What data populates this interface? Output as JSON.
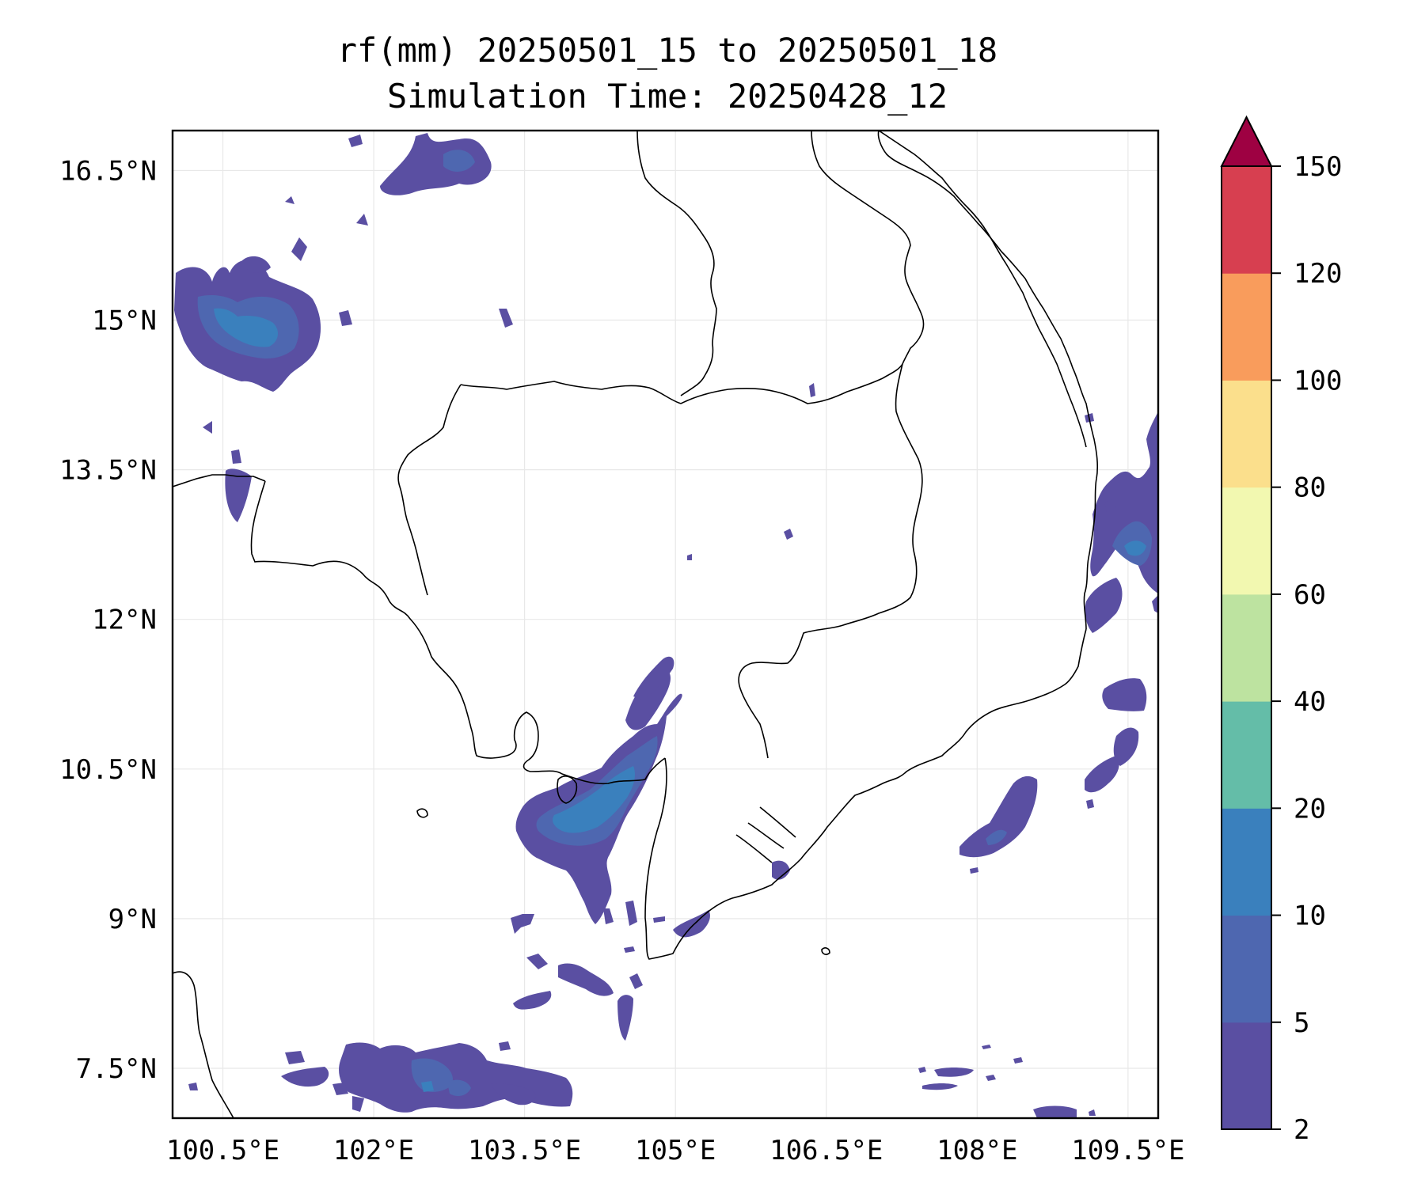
{
  "title": {
    "line1": "rf(mm) 20250501_15 to 20250501_18",
    "line2": "Simulation Time: 20250428_12"
  },
  "map": {
    "variable": "rf",
    "units": "mm",
    "lon_range": [
      100.0,
      109.8
    ],
    "lat_range": [
      7.0,
      16.9
    ],
    "gridlines": true,
    "lon_ticks": [
      100.5,
      102,
      103.5,
      105,
      106.5,
      108,
      109.5
    ],
    "lon_tick_labels": [
      "100.5°E",
      "102°E",
      "103.5°E",
      "105°E",
      "106.5°E",
      "108°E",
      "109.5°E"
    ],
    "lat_ticks": [
      7.5,
      9,
      10.5,
      12,
      13.5,
      15,
      16.5
    ],
    "lat_tick_labels": [
      "7.5°N",
      "9°N",
      "10.5°N",
      "12°N",
      "13.5°N",
      "15°N",
      "16.5°N"
    ],
    "colors": {
      "border": "#000000",
      "grid": "#e8e8e8",
      "land_line": "#000000"
    }
  },
  "colorbar": {
    "levels": [
      2,
      5,
      10,
      20,
      40,
      60,
      80,
      100,
      120,
      150
    ],
    "level_labels": [
      "2",
      "5",
      "10",
      "20",
      "40",
      "60",
      "80",
      "100",
      "120",
      "150"
    ],
    "colors": [
      "#5a4fa2",
      "#4e67b0",
      "#3a80bd",
      "#64bda8",
      "#bde3a0",
      "#f2f8b0",
      "#fbdf8c",
      "#f99c5c",
      "#d73f50"
    ],
    "extend_color": "#9e0142",
    "extend": "max"
  }
}
